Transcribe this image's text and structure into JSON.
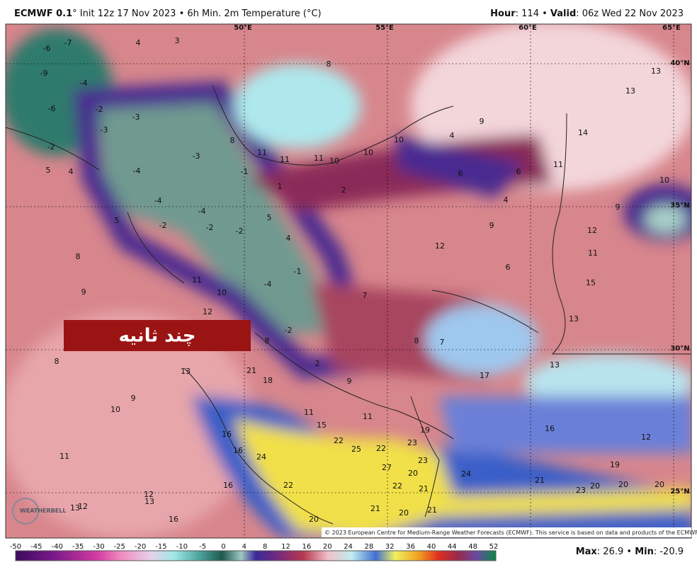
{
  "header": {
    "model": "ECMWF 0.1",
    "title_rest": "° Init 12z 17 Nov 2023 • 6h Min. 2m Temperature (°C)",
    "hour_label": "Hour",
    "hour_value": ": 114 • ",
    "valid_label": "Valid",
    "valid_value": ": 06z Wed 22 Nov 2023"
  },
  "map": {
    "graticule": [
      "50°E",
      "55°E",
      "60°E",
      "65°E",
      "40°N",
      "35°N",
      "30°N",
      "25°N"
    ],
    "values": [
      "-6",
      "-7",
      "4",
      "3",
      "-9",
      "-6",
      "-4",
      "-2",
      "-3",
      "-3",
      "-2",
      "5",
      "4",
      "-4",
      "-3",
      "-1",
      "8",
      "11",
      "11",
      "11",
      "10",
      "10",
      "10",
      "9",
      "4",
      "6",
      "6",
      "4",
      "2",
      "1",
      "5",
      "4",
      "-4",
      "-4",
      "-2",
      "-2",
      "-2",
      "5",
      "8",
      "9",
      "11",
      "10",
      "12",
      "-1",
      "-4",
      "7",
      "-2",
      "8",
      "2",
      "8",
      "7",
      "9",
      "17",
      "13",
      "9",
      "12",
      "6",
      "12",
      "11",
      "15",
      "13",
      "9",
      "10",
      "11",
      "14",
      "13",
      "13",
      "8",
      "8",
      "13",
      "21",
      "18",
      "9",
      "10",
      "11",
      "11",
      "15",
      "19",
      "16",
      "16",
      "12",
      "16",
      "24",
      "22",
      "25",
      "22",
      "23",
      "27",
      "23",
      "24",
      "19",
      "21",
      "23",
      "20",
      "20",
      "20",
      "11",
      "16",
      "22",
      "20",
      "22",
      "21",
      "21",
      "20",
      "21",
      "12",
      "13",
      "13",
      "12",
      "16",
      "20"
    ],
    "overlay_text": "چند ثانیه",
    "logo": "WEATHERBELL",
    "credit": "© 2023 European Centre for Medium-Range Weather Forecasts (ECMWF). This service is based on data and products of the ECMWF."
  },
  "colorbar": {
    "ticks": [
      "-50",
      "-45",
      "-40",
      "-35",
      "-30",
      "-25",
      "-20",
      "-15",
      "-10",
      "-5",
      "0",
      "4",
      "8",
      "12",
      "16",
      "20",
      "24",
      "28",
      "32",
      "36",
      "40",
      "44",
      "48",
      "52"
    ]
  },
  "footer": {
    "max_label": "Max",
    "max_value": ": 26.9 • ",
    "min_label": "Min",
    "min_value": ": -20.9"
  }
}
